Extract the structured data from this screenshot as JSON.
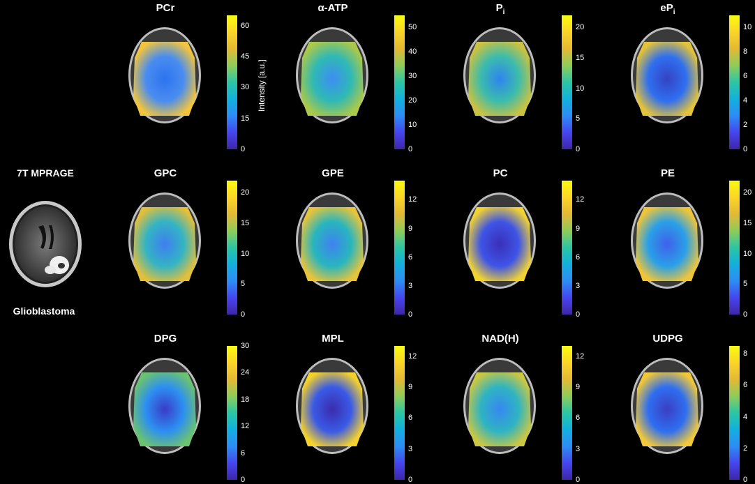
{
  "reference": {
    "title": "7T MPRAGE",
    "caption": "Glioblastoma"
  },
  "colorbar_label": "Intensity [a.u.]",
  "colormap": [
    "#3e26a8",
    "#4646ee",
    "#2d8cf5",
    "#13b0dc",
    "#2cc6a4",
    "#8fcc5a",
    "#e3b934",
    "#fbd528",
    "#f9fb0e"
  ],
  "panels": [
    {
      "name": "PCr",
      "sub": "",
      "ticks": [
        "60",
        "45",
        "30",
        "15",
        "0"
      ],
      "max": 65,
      "ramp": [
        "#f2c53d",
        "#4a8df0",
        "#2c74f0"
      ]
    },
    {
      "name": "α-ATP",
      "sub": "",
      "ticks": [
        "50",
        "40",
        "30",
        "20",
        "10",
        "0"
      ],
      "max": 55,
      "ramp": [
        "#aac84a",
        "#2fb9b5",
        "#3d8ef3"
      ]
    },
    {
      "name": "P",
      "sub": "i",
      "ticks": [
        "20",
        "15",
        "10",
        "5",
        "0"
      ],
      "max": 22,
      "ramp": [
        "#c9c242",
        "#3cbcac",
        "#2e84f0"
      ]
    },
    {
      "name": "eP",
      "sub": "i",
      "ticks": [
        "10",
        "8",
        "6",
        "4",
        "2",
        "0"
      ],
      "max": 11,
      "ramp": [
        "#e3c33a",
        "#2f6ff0",
        "#3443c4"
      ]
    },
    {
      "name": "GPC",
      "sub": "",
      "ticks": [
        "20",
        "15",
        "10",
        "5",
        "0"
      ],
      "max": 22,
      "ramp": [
        "#e0bf3d",
        "#33b4c4",
        "#3f7ef0"
      ]
    },
    {
      "name": "GPE",
      "sub": "",
      "ticks": [
        "12",
        "9",
        "6",
        "3",
        "0"
      ],
      "max": 14,
      "ramp": [
        "#e6c43c",
        "#28b6bd",
        "#3e82f1"
      ]
    },
    {
      "name": "PC",
      "sub": "",
      "ticks": [
        "12",
        "9",
        "6",
        "3",
        "0"
      ],
      "max": 14,
      "ramp": [
        "#f0d233",
        "#3e54e6",
        "#3b2fb8"
      ]
    },
    {
      "name": "PE",
      "sub": "",
      "ticks": [
        "20",
        "15",
        "10",
        "5",
        "0"
      ],
      "max": 22,
      "ramp": [
        "#eec53a",
        "#2aa0e8",
        "#3f61ea"
      ]
    },
    {
      "name": "DPG",
      "sub": "",
      "ticks": [
        "30",
        "24",
        "18",
        "12",
        "6",
        "0"
      ],
      "max": 30,
      "ramp": [
        "#6bc272",
        "#2c8ff2",
        "#3a3bc8"
      ]
    },
    {
      "name": "MPL",
      "sub": "",
      "ticks": [
        "12",
        "9",
        "6",
        "3",
        "0"
      ],
      "max": 13,
      "ramp": [
        "#f4d12c",
        "#3a5ae6",
        "#3a2cae"
      ]
    },
    {
      "name": "NAD(H)",
      "sub": "",
      "ticks": [
        "12",
        "9",
        "6",
        "3",
        "0"
      ],
      "max": 13,
      "ramp": [
        "#c9c744",
        "#2fb4c2",
        "#3688f1"
      ]
    },
    {
      "name": "UDPG",
      "sub": "",
      "ticks": [
        "8",
        "6",
        "4",
        "2",
        "0"
      ],
      "max": 8.5,
      "ramp": [
        "#f0c83a",
        "#2f6ef0",
        "#3b3fc4"
      ]
    }
  ]
}
